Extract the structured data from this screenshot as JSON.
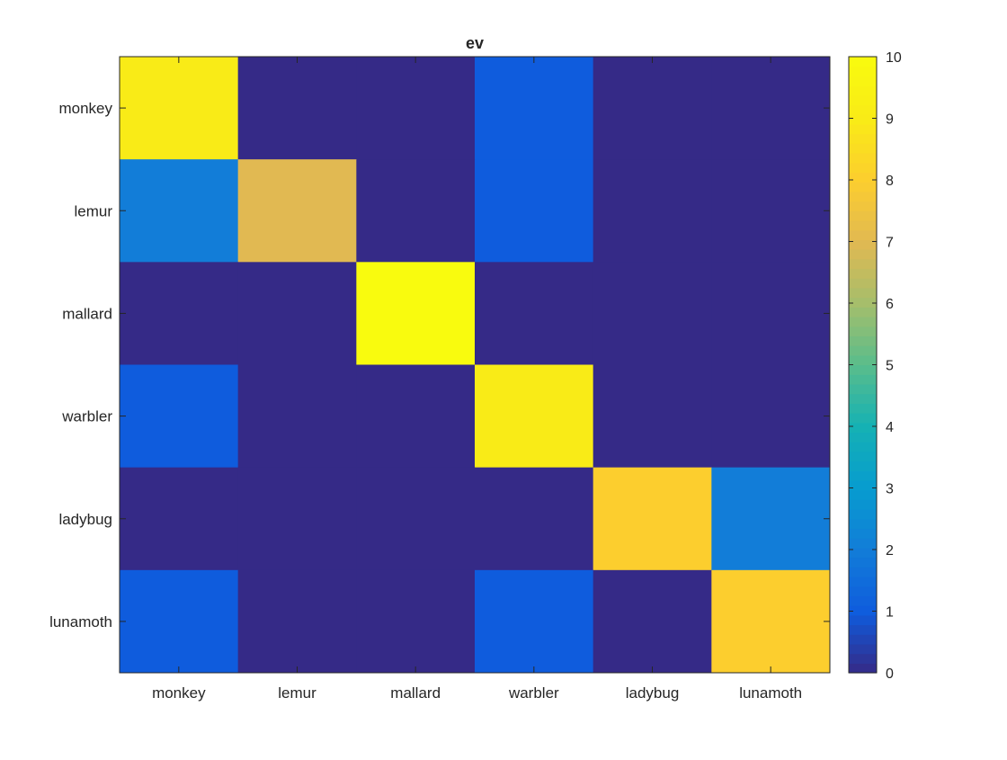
{
  "chart_data": {
    "type": "heatmap",
    "title": "ev",
    "xlabel": "",
    "ylabel": "",
    "x_categories": [
      "monkey",
      "lemur",
      "mallard",
      "warbler",
      "ladybug",
      "lunamoth"
    ],
    "y_categories": [
      "monkey",
      "lemur",
      "mallard",
      "warbler",
      "ladybug",
      "lunamoth"
    ],
    "values": [
      [
        9,
        0,
        0,
        1,
        0,
        0
      ],
      [
        2,
        7,
        0,
        1,
        0,
        0
      ],
      [
        0,
        0,
        10,
        0,
        0,
        0
      ],
      [
        1,
        0,
        0,
        9,
        0,
        0
      ],
      [
        0,
        0,
        0,
        0,
        8,
        2
      ],
      [
        1,
        0,
        0,
        1,
        0,
        8
      ]
    ],
    "clim": [
      0,
      10
    ],
    "colormap": "parula",
    "colorbar": {
      "ticks": [
        0,
        1,
        2,
        3,
        4,
        5,
        6,
        7,
        8,
        9,
        10
      ],
      "location": "right"
    },
    "grid": false
  }
}
